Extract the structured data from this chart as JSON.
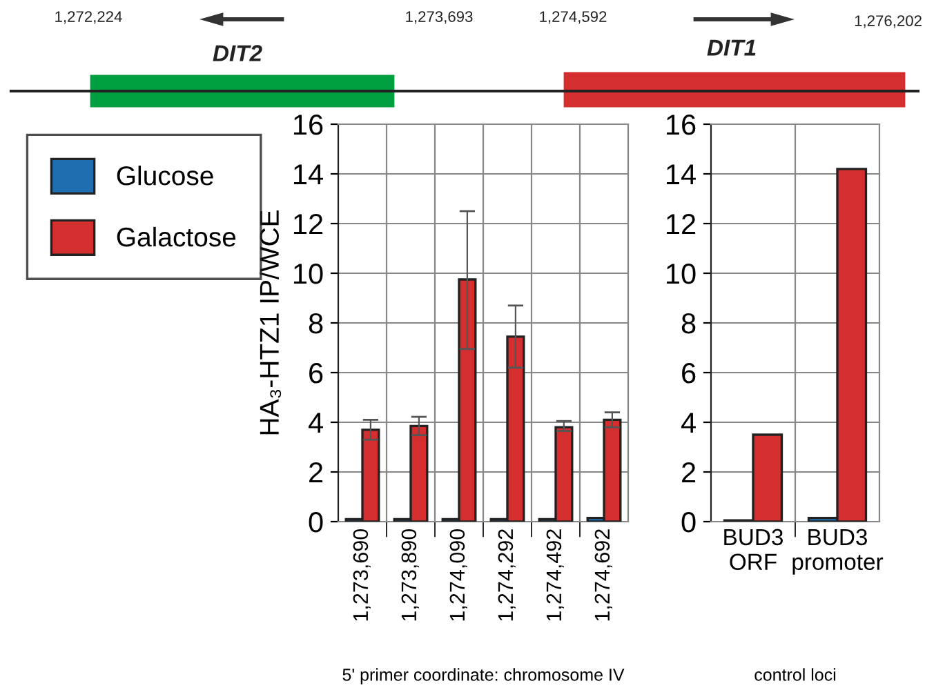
{
  "chart_data": [
    {
      "type": "other",
      "annotations": [
        "1,272,224",
        "1,273,693",
        "1,274,592",
        "1,276,202",
        "DIT2",
        "DIT1"
      ]
    },
    {
      "type": "bar",
      "ylabel": "HA₃-HTZ1 IP/WCE",
      "xlabel": "5' primer coordinate: chromosome IV",
      "categories": [
        "1,273,690",
        "1,273,890",
        "1,274,090",
        "1,274,292",
        "1,274,492",
        "1,274,692"
      ],
      "series": [
        {
          "name": "Glucose",
          "color": "#1f6fb0",
          "values": [
            0.1,
            0.1,
            0.1,
            0.1,
            0.1,
            0.15
          ]
        },
        {
          "name": "Galactose",
          "color": "#d42e2e",
          "values": [
            3.7,
            3.85,
            9.75,
            7.45,
            3.8,
            4.1
          ],
          "errors": [
            0.4,
            0.37,
            [
              6.95,
              12.5
            ],
            [
              6.2,
              8.7
            ],
            [
              3.65,
              4.05
            ],
            [
              3.8,
              4.4
            ]
          ]
        }
      ],
      "ylim": [
        0,
        16
      ],
      "yticks": [
        0,
        2,
        4,
        6,
        8,
        10,
        12,
        14,
        16
      ],
      "grid": true,
      "legend": "left"
    },
    {
      "type": "bar",
      "xlabel": "control loci",
      "categories": [
        "BUD3\nORF",
        "BUD3\npromoter"
      ],
      "series": [
        {
          "color": "#1f6fb0",
          "values": [
            0.05,
            0.15
          ]
        },
        {
          "color": "#d42e2e",
          "values": [
            3.5,
            14.2
          ]
        }
      ],
      "ylim": [
        0,
        16
      ],
      "yticks": [
        0,
        2,
        4,
        6,
        8,
        10,
        12,
        14,
        16
      ],
      "grid": true
    }
  ]
}
